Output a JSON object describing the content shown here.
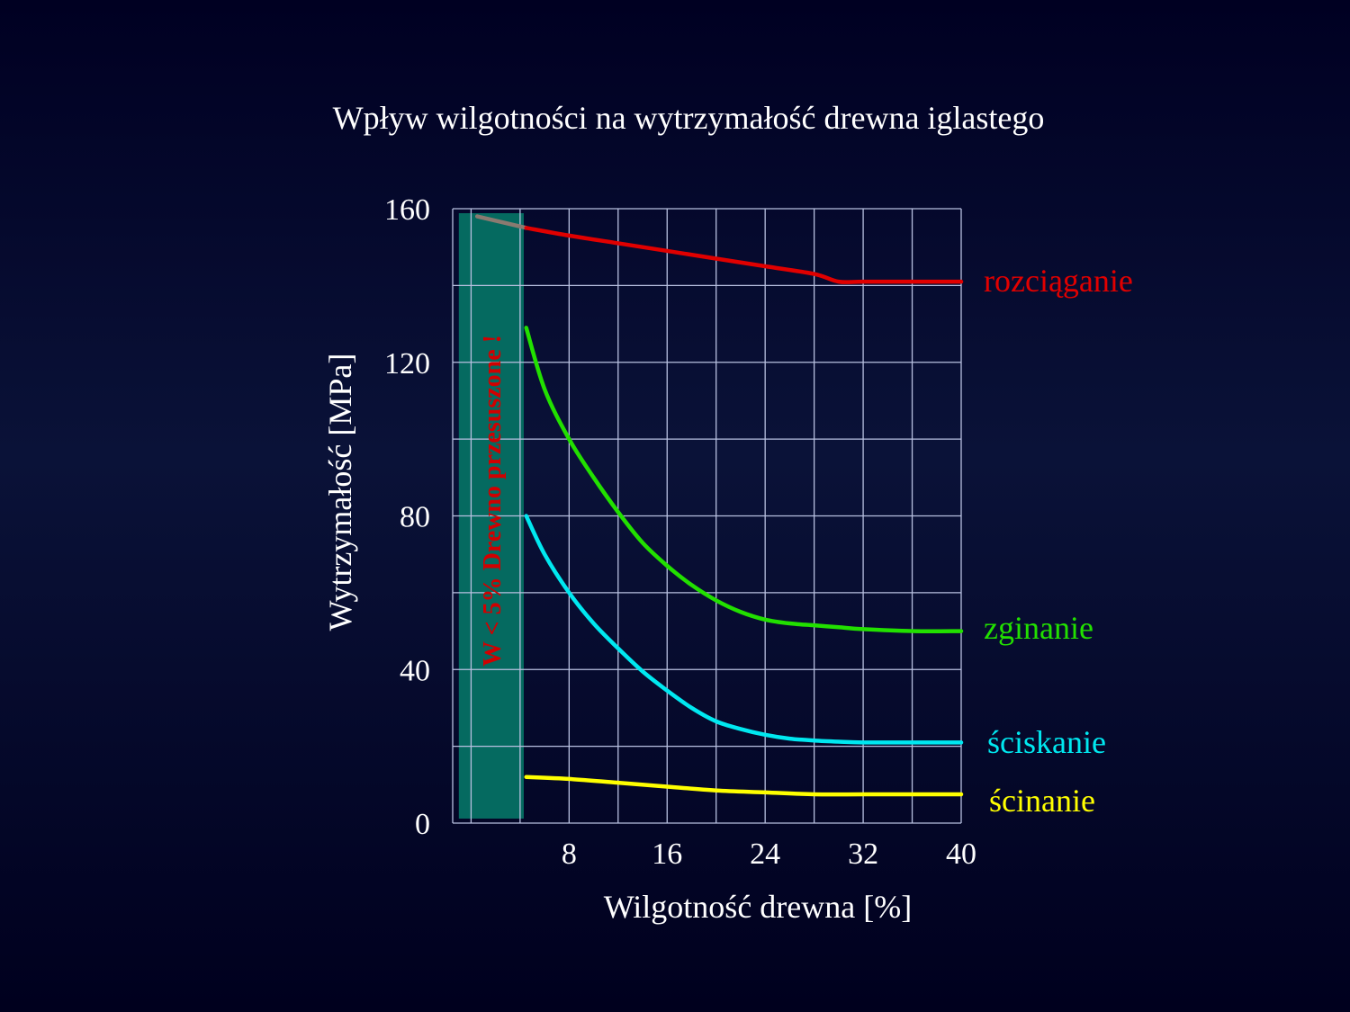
{
  "title": "Wpływ wilgotności na wytrzymałość drewna iglastego",
  "chart_data": {
    "type": "line",
    "title": "Wpływ wilgotności na wytrzymałość drewna iglastego",
    "xlabel": "Wilgotność drewna [%]",
    "ylabel": "Wytrzymałość [MPa]",
    "xlim": [
      -1.5,
      40
    ],
    "ylim": [
      0,
      160
    ],
    "x_ticks": [
      "8",
      "16",
      "24",
      "32",
      "40"
    ],
    "y_ticks": [
      "0",
      "40",
      "80",
      "120",
      "160"
    ],
    "grid": true,
    "excluded_region": {
      "x_range": [
        -1,
        4.3
      ],
      "label": "W < 5%  Drewno przesuszone !",
      "color": "#056A60",
      "label_color": "#D10000"
    },
    "series": [
      {
        "name": "rozciąganie",
        "color": "#E00000",
        "x": [
          4.5,
          8,
          12,
          16,
          20,
          24,
          28,
          30,
          32,
          36,
          40
        ],
        "y": [
          155,
          153,
          151,
          149,
          147,
          145,
          143,
          141,
          141,
          141,
          141
        ],
        "dashed_extension": {
          "color": "#8A7A70",
          "x": [
            0.5,
            4.5
          ],
          "y": [
            158,
            155
          ]
        }
      },
      {
        "name": "zginanie",
        "color": "#22E000",
        "x": [
          4.5,
          6,
          8,
          10,
          12,
          14,
          16,
          18,
          20,
          22,
          24,
          26,
          28,
          30,
          32,
          36,
          40
        ],
        "y": [
          129,
          113,
          100,
          90,
          81,
          73,
          67,
          62,
          58,
          55,
          53,
          52,
          51.5,
          51,
          50.5,
          50,
          50
        ]
      },
      {
        "name": "ściskanie",
        "color": "#00E8F0",
        "x": [
          4.5,
          6,
          8,
          10,
          12,
          14,
          16,
          18,
          20,
          22,
          24,
          26,
          28,
          30,
          32,
          36,
          40
        ],
        "y": [
          80,
          70,
          60,
          52,
          45.5,
          39.5,
          34.5,
          30,
          26.5,
          24.5,
          23,
          22,
          21.5,
          21.2,
          21,
          21,
          21
        ]
      },
      {
        "name": "ścinanie",
        "color": "#FFFF00",
        "x": [
          4.5,
          8,
          12,
          16,
          20,
          24,
          28,
          32,
          36,
          40
        ],
        "y": [
          12,
          11.5,
          10.5,
          9.5,
          8.5,
          8,
          7.5,
          7.5,
          7.5,
          7.5
        ]
      }
    ]
  }
}
